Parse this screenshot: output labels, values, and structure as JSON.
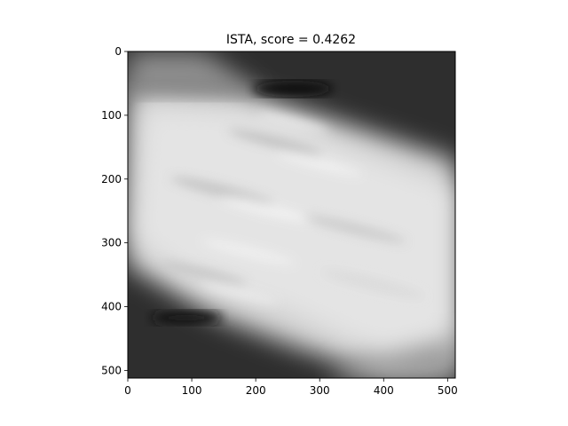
{
  "chart_data": {
    "type": "heatmap",
    "title": "ISTA, score = 0.4262",
    "xlabel": "",
    "ylabel": "",
    "xlim": [
      0,
      512
    ],
    "ylim": [
      512,
      0
    ],
    "x_ticks": [
      {
        "value": 0,
        "label": "0"
      },
      {
        "value": 100,
        "label": "100"
      },
      {
        "value": 200,
        "label": "200"
      },
      {
        "value": 300,
        "label": "300"
      },
      {
        "value": 400,
        "label": "400"
      },
      {
        "value": 500,
        "label": "500"
      }
    ],
    "y_ticks": [
      {
        "value": 0,
        "label": "0"
      },
      {
        "value": 100,
        "label": "100"
      },
      {
        "value": 200,
        "label": "200"
      },
      {
        "value": 300,
        "label": "300"
      },
      {
        "value": 400,
        "label": "400"
      },
      {
        "value": 500,
        "label": "500"
      }
    ],
    "colormap": "gray",
    "grid": false,
    "image_size": [
      512,
      512
    ]
  }
}
